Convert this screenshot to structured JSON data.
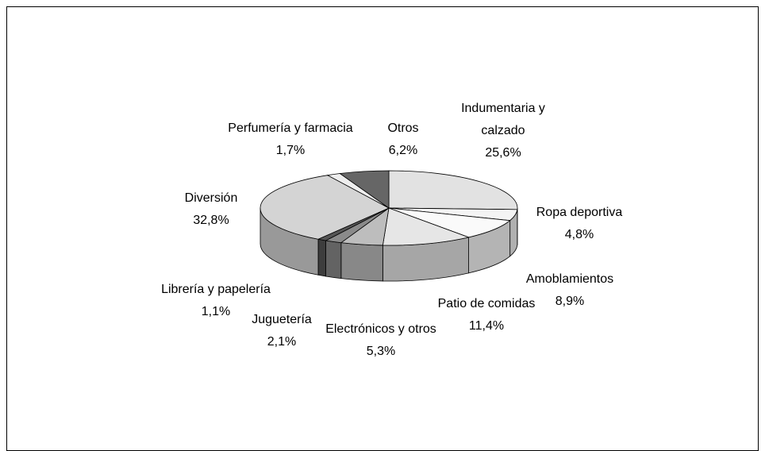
{
  "chart_data": {
    "type": "pie3d",
    "categories": [
      "Indumentaria y calzado",
      "Ropa deportiva",
      "Amoblamientos",
      "Patio de comidas",
      "Electrónicos y otros",
      "Juguetería",
      "Librería y papelería",
      "Diversión",
      "Perfumería y farmacia",
      "Otros"
    ],
    "values": [
      25.6,
      4.8,
      8.9,
      11.4,
      5.3,
      2.1,
      1.1,
      32.8,
      1.7,
      6.2
    ],
    "value_labels": [
      "25,6%",
      "4,8%",
      "8,9%",
      "11,4%",
      "5,3%",
      "2,1%",
      "1,1%",
      "32,8%",
      "1,7%",
      "6,2%"
    ],
    "colors": [
      "#e2e2e2",
      "#f4f4f4",
      "#fafafa",
      "#e6e6e6",
      "#bdbdbd",
      "#8a8a8a",
      "#555555",
      "#d4d4d4",
      "#eeeeee",
      "#666666"
    ]
  }
}
